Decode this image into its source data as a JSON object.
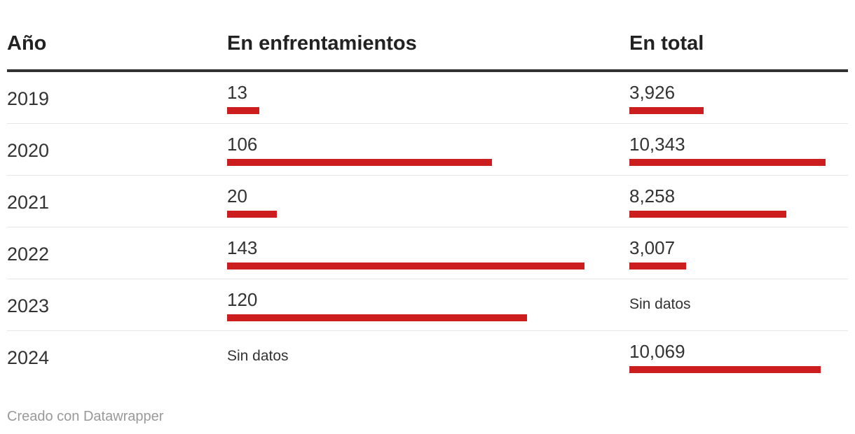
{
  "columns": {
    "year": "Año",
    "clashes": "En enfrentamientos",
    "total": "En total"
  },
  "no_data_label": "Sin datos",
  "bar_color": "#cc1e1e",
  "rows": [
    {
      "year": "2019",
      "clashes": "13",
      "total": "3,926"
    },
    {
      "year": "2020",
      "clashes": "106",
      "total": "10,343"
    },
    {
      "year": "2021",
      "clashes": "20",
      "total": "8,258"
    },
    {
      "year": "2022",
      "clashes": "143",
      "total": "3,007"
    },
    {
      "year": "2023",
      "clashes": "120",
      "total": "Sin datos"
    },
    {
      "year": "2024",
      "clashes": "Sin datos",
      "total": "10,069"
    }
  ],
  "chart_data": {
    "type": "table",
    "columns": [
      "Año",
      "En enfrentamientos",
      "En total"
    ],
    "rows": [
      {
        "year": 2019,
        "clashes": 13,
        "total": 3926
      },
      {
        "year": 2020,
        "clashes": 106,
        "total": 10343
      },
      {
        "year": 2021,
        "clashes": 20,
        "total": 8258
      },
      {
        "year": 2022,
        "clashes": 143,
        "total": 3007
      },
      {
        "year": 2023,
        "clashes": 120,
        "total": null
      },
      {
        "year": 2024,
        "clashes": null,
        "total": 10069
      }
    ]
  },
  "footer": "Creado con Datawrapper"
}
